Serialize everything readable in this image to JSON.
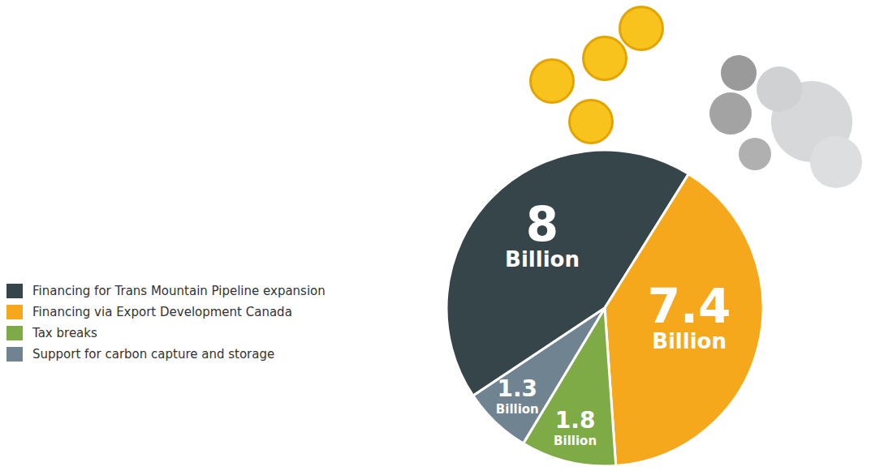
{
  "chart_data": {
    "type": "pie",
    "categories": [
      "Financing for Trans Mountain Pipeline expansion",
      "Financing via Export Development Canada",
      "Tax breaks",
      "Support for carbon capture and storage"
    ],
    "values": [
      8,
      7.4,
      1.8,
      1.3
    ],
    "value_labels": [
      "8 Billion",
      "7.4 Billion",
      "1.8 Billion",
      "1.3 Billion"
    ],
    "colors": [
      "#36454a",
      "#f6a81c",
      "#7fab47",
      "#6f8490"
    ],
    "data_labels": true,
    "legend": "left"
  }
}
